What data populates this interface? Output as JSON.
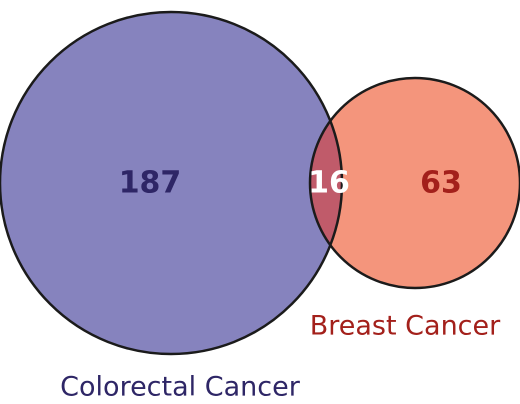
{
  "colors": {
    "colorectal_fill": "#8683be",
    "breast_fill": "#f4957c",
    "overlap_fill": "#c05b6a",
    "outline": "#1b1b1b",
    "colorectal_text": "#2e2666",
    "breast_text": "#a3201b",
    "overlap_text": "#ffffff"
  },
  "sets": {
    "colorectal": {
      "label": "Colorectal Cancer",
      "only_count": "187"
    },
    "breast": {
      "label": "Breast Cancer",
      "only_count": "63"
    }
  },
  "intersection": {
    "count": "16"
  }
}
